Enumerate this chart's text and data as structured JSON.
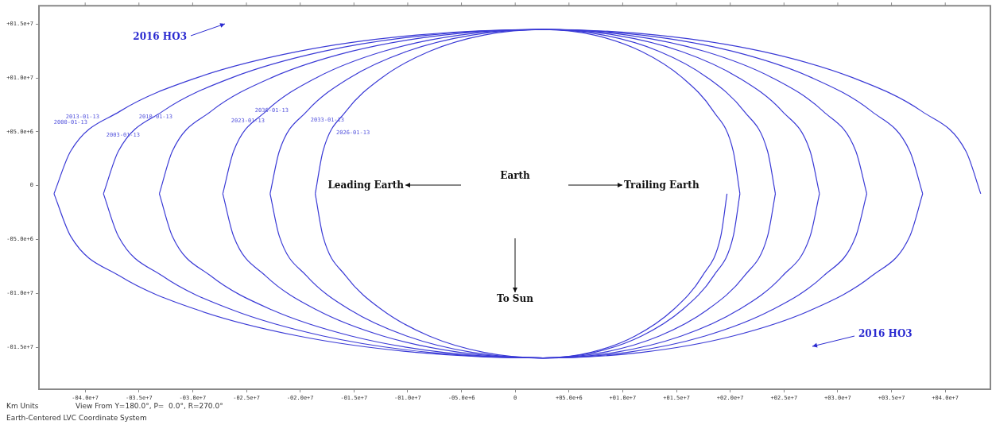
{
  "chart_data": {
    "type": "line",
    "marker": "none",
    "line_style": "solid",
    "grid": false,
    "legend": false,
    "xlim": [
      -44300000.0,
      44200000.0
    ],
    "ylim": [
      -18900000.0,
      16700000.0
    ],
    "xticks": [
      {
        "value": -40000000.0,
        "label": "-04.0e+7"
      },
      {
        "value": -35000000.0,
        "label": "-03.5e+7"
      },
      {
        "value": -30000000.0,
        "label": "-03.0e+7"
      },
      {
        "value": -25000000.0,
        "label": "-02.5e+7"
      },
      {
        "value": -20000000.0,
        "label": "-02.0e+7"
      },
      {
        "value": -15000000.0,
        "label": "-01.5e+7"
      },
      {
        "value": -10000000.0,
        "label": "-01.0e+7"
      },
      {
        "value": -5000000.0,
        "label": "-05.0e+6"
      },
      0,
      {
        "value": 5000000.0,
        "label": "+05.0e+6"
      },
      {
        "value": 10000000.0,
        "label": "+01.0e+7"
      },
      {
        "value": 15000000.0,
        "label": "+01.5e+7"
      },
      {
        "value": 20000000.0,
        "label": "+02.0e+7"
      },
      {
        "value": 25000000.0,
        "label": "+02.5e+7"
      },
      {
        "value": 30000000.0,
        "label": "+03.0e+7"
      },
      {
        "value": 35000000.0,
        "label": "+03.5e+7"
      },
      {
        "value": 40000000.0,
        "label": "+04.0e+7"
      }
    ],
    "yticks": [
      {
        "value": -15000000.0,
        "label": "-01.5e+7"
      },
      {
        "value": -10000000.0,
        "label": "-01.0e+7"
      },
      {
        "value": -5000000.0,
        "label": "-05.0e+6"
      },
      0,
      {
        "value": 5000000.0,
        "label": "+05.0e+6"
      },
      {
        "value": 10000000.0,
        "label": "+01.0e+7"
      },
      {
        "value": 15000000.0,
        "label": "+01.5e+7"
      }
    ],
    "series": [
      {
        "type": "line",
        "color": "#3b3bd6",
        "x": [
          -42900000.0,
          -41350000.0,
          -36800000.0,
          -29570000.0,
          -20150000.0,
          -9180000.0,
          2600000.0,
          13140000.0,
          22950000.0,
          31370000.0,
          37850000.0,
          41920000.0,
          43300000.0
        ],
        "values": [
          -750000.0,
          3200000.0,
          6880000.0,
          10030000.0,
          12460000.0,
          13980000.0,
          14500000.0,
          13980000.0,
          12460000.0,
          10030000.0,
          6880000.0,
          3200000.0,
          -750000.0
        ]
      },
      {
        "type": "line",
        "color": "#3b3bd6",
        "x": [
          -42900000.0,
          -41350000.0,
          -36800000.0,
          -29570000.0,
          -20150000.0,
          -9180000.0,
          2600000.0,
          11740000.0,
          20250000.0,
          27560000.0,
          33170000.0,
          36700000.0,
          37900000.0
        ],
        "values": [
          -750000.0,
          -4700000.0,
          -8380000.0,
          -11530000.0,
          -13960000.0,
          -15480000.0,
          -16000000.0,
          -15480000.0,
          -13960000.0,
          -11530000.0,
          -8380000.0,
          -4700000.0,
          -750000.0
        ]
      },
      {
        "type": "line",
        "color": "#3b3bd6",
        "x": [
          -38300000.0,
          -36910000.0,
          -32820000.0,
          -26320000.0,
          -17850000.0,
          -7990000.0,
          2600000.0,
          11740000.0,
          20250000.0,
          27560000.0,
          33170000.0,
          36700000.0,
          37900000.0
        ],
        "values": [
          -750000.0,
          3200000.0,
          6880000.0,
          10030000.0,
          12460000.0,
          13980000.0,
          14500000.0,
          13980000.0,
          12460000.0,
          10030000.0,
          6880000.0,
          3200000.0,
          -750000.0
        ]
      },
      {
        "type": "line",
        "color": "#3b3bd6",
        "x": [
          -38300000.0,
          -36910000.0,
          -32820000.0,
          -26320000.0,
          -17850000.0,
          -7990000.0,
          2600000.0,
          10400000.0,
          17650000.0,
          23880000.0,
          28670000.0,
          31680000.0,
          32700000.0
        ],
        "values": [
          -750000.0,
          -4700000.0,
          -8380000.0,
          -11530000.0,
          -13960000.0,
          -15480000.0,
          -16000000.0,
          -15480000.0,
          -13960000.0,
          -11530000.0,
          -8380000.0,
          -4700000.0,
          -750000.0
        ]
      },
      {
        "type": "line",
        "color": "#3b3bd6",
        "x": [
          -33100000.0,
          -31890000.0,
          -28320000.0,
          -22640000.0,
          -15250000.0,
          -6650000.0,
          2600000.0,
          10400000.0,
          17650000.0,
          23880000.0,
          28670000.0,
          31680000.0,
          32700000.0
        ],
        "values": [
          -750000.0,
          3200000.0,
          6880000.0,
          10030000.0,
          12460000.0,
          13980000.0,
          14500000.0,
          13980000.0,
          12460000.0,
          10030000.0,
          6880000.0,
          3200000.0,
          -750000.0
        ]
      },
      {
        "type": "line",
        "color": "#3b3bd6",
        "x": [
          -33100000.0,
          -31890000.0,
          -28320000.0,
          -22640000.0,
          -15250000.0,
          -6650000.0,
          2600000.0,
          9260000.0,
          15450000.0,
          20770000.0,
          24860000.0,
          27430000.0,
          28300000.0
        ],
        "values": [
          -750000.0,
          -4700000.0,
          -8380000.0,
          -11530000.0,
          -13960000.0,
          -15480000.0,
          -16000000.0,
          -15480000.0,
          -13960000.0,
          -11530000.0,
          -8380000.0,
          -4700000.0,
          -750000.0
        ]
      },
      {
        "type": "line",
        "color": "#3b3bd6",
        "x": [
          -27200000.0,
          -26190000.0,
          -23210000.0,
          -18470000.0,
          -12300000.0,
          -5120000.0,
          2600000.0,
          9260000.0,
          15450000.0,
          20770000.0,
          24860000.0,
          27430000.0,
          28300000.0
        ],
        "values": [
          -750000.0,
          3200000.0,
          6880000.0,
          10030000.0,
          12460000.0,
          13980000.0,
          14500000.0,
          13980000.0,
          12460000.0,
          10030000.0,
          6880000.0,
          3200000.0,
          -750000.0
        ]
      },
      {
        "type": "line",
        "color": "#3b3bd6",
        "x": [
          -27200000.0,
          -26190000.0,
          -23210000.0,
          -18470000.0,
          -12300000.0,
          -5120000.0,
          2600000.0,
          8190000.0,
          13400000.0,
          17870000.0,
          21310000.0,
          23470000.0,
          24200000.0
        ],
        "values": [
          -750000.0,
          -4700000.0,
          -8380000.0,
          -11530000.0,
          -13960000.0,
          -15480000.0,
          -16000000.0,
          -15480000.0,
          -13960000.0,
          -11530000.0,
          -8380000.0,
          -4700000.0,
          -750000.0
        ]
      },
      {
        "type": "line",
        "color": "#3b3bd6",
        "x": [
          -22800000.0,
          -21940000.0,
          -19400000.0,
          -15360000.0,
          -10100000.0,
          -3980000.0,
          2600000.0,
          8190000.0,
          13400000.0,
          17870000.0,
          21310000.0,
          23470000.0,
          24200000.0
        ],
        "values": [
          -750000.0,
          3200000.0,
          6880000.0,
          10030000.0,
          12460000.0,
          13980000.0,
          14500000.0,
          13980000.0,
          12460000.0,
          10030000.0,
          6880000.0,
          3200000.0,
          -750000.0
        ]
      },
      {
        "type": "line",
        "color": "#3b3bd6",
        "x": [
          -22800000.0,
          -21940000.0,
          -19400000.0,
          -15360000.0,
          -10100000.0,
          -3980000.0,
          2600000.0,
          7340000.0,
          11750000.0,
          15540000.0,
          18450000.0,
          20280000.0,
          20900000.0
        ],
        "values": [
          -750000.0,
          -4700000.0,
          -8380000.0,
          -11530000.0,
          -13960000.0,
          -15480000.0,
          -16000000.0,
          -15480000.0,
          -13960000.0,
          -11530000.0,
          -8380000.0,
          -4700000.0,
          -750000.0
        ]
      },
      {
        "type": "line",
        "color": "#3b3bd6",
        "x": [
          -18600000.0,
          -17880000.0,
          -15760000.0,
          -12390000.0,
          -8000000.0,
          -2890000.0,
          2600000.0,
          7340000.0,
          11750000.0,
          15540000.0,
          18450000.0,
          20280000.0,
          20900000.0
        ],
        "values": [
          -750000.0,
          3200000.0,
          6880000.0,
          10030000.0,
          12460000.0,
          13980000.0,
          14500000.0,
          13980000.0,
          12460000.0,
          10030000.0,
          6880000.0,
          3200000.0,
          -750000.0
        ]
      },
      {
        "type": "line",
        "color": "#3b3bd6",
        "x": [
          -18600000.0,
          -17880000.0,
          -15760000.0,
          -12390000.0,
          -8000000.0,
          -2890000.0,
          2600000.0,
          7030000.0,
          11150000.0,
          14690000.0,
          17410000.0,
          19120000.0,
          19700000.0
        ],
        "values": [
          -750000.0,
          -4700000.0,
          -8380000.0,
          -11530000.0,
          -13960000.0,
          -15480000.0,
          -16000000.0,
          -15480000.0,
          -13960000.0,
          -11530000.0,
          -8380000.0,
          -4700000.0,
          -750000.0
        ]
      }
    ],
    "annotations": [
      "2016 HO3",
      "2016 HO3",
      "2013-01-13",
      "2000-01-13",
      "2010-01-13",
      "2003-01-13",
      "2036-01-13",
      "2023-01-13",
      "2033-01-13",
      "2026-01-13",
      "Earth",
      "Leading Earth",
      "Trailing Earth",
      "To Sun",
      "Km Units",
      "View From Y=180.0°, P=  0.0°, R=270.0°",
      "Earth-Centered LVC Coordinate System"
    ]
  }
}
